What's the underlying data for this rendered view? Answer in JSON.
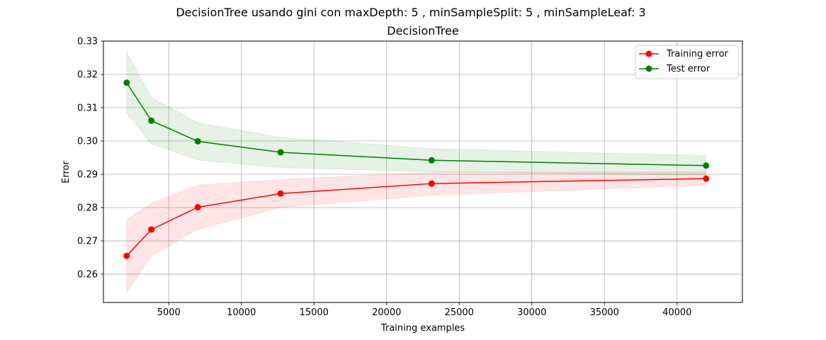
{
  "chart_data": {
    "type": "line",
    "suptitle": "DecisionTree usando gini con maxDepth: 5 , minSampleSplit: 5 , minSampleLeaf: 3",
    "title": "DecisionTree",
    "xlabel": "Training examples",
    "ylabel": "Error",
    "xlim": [
      500,
      44500
    ],
    "ylim": [
      0.2515,
      0.33
    ],
    "xticks": [
      5000,
      10000,
      15000,
      20000,
      25000,
      30000,
      35000,
      40000
    ],
    "yticks": [
      0.26,
      0.27,
      0.28,
      0.29,
      0.3,
      0.31,
      0.32,
      0.33
    ],
    "ytick_labels": [
      "0.26",
      "0.27",
      "0.28",
      "0.29",
      "0.30",
      "0.31",
      "0.32",
      "0.33"
    ],
    "grid": true,
    "legend_position": "upper-right",
    "x": [
      2100,
      3800,
      7000,
      12700,
      23100,
      42000
    ],
    "series": [
      {
        "name": "Training error",
        "color": "#ff0000",
        "values": [
          0.2655,
          0.2734,
          0.2801,
          0.2842,
          0.2872,
          0.2887
        ],
        "band_lower": [
          0.2545,
          0.2655,
          0.2735,
          0.28,
          0.2837,
          0.2867
        ],
        "band_upper": [
          0.2763,
          0.2813,
          0.2867,
          0.2884,
          0.2906,
          0.2907
        ]
      },
      {
        "name": "Test error",
        "color": "#008000",
        "values": [
          0.3175,
          0.3061,
          0.2999,
          0.2966,
          0.2942,
          0.2926
        ],
        "band_lower": [
          0.3085,
          0.2991,
          0.2943,
          0.292,
          0.2908,
          0.2897
        ],
        "band_upper": [
          0.3266,
          0.3131,
          0.3054,
          0.3011,
          0.2977,
          0.2956
        ]
      }
    ]
  }
}
